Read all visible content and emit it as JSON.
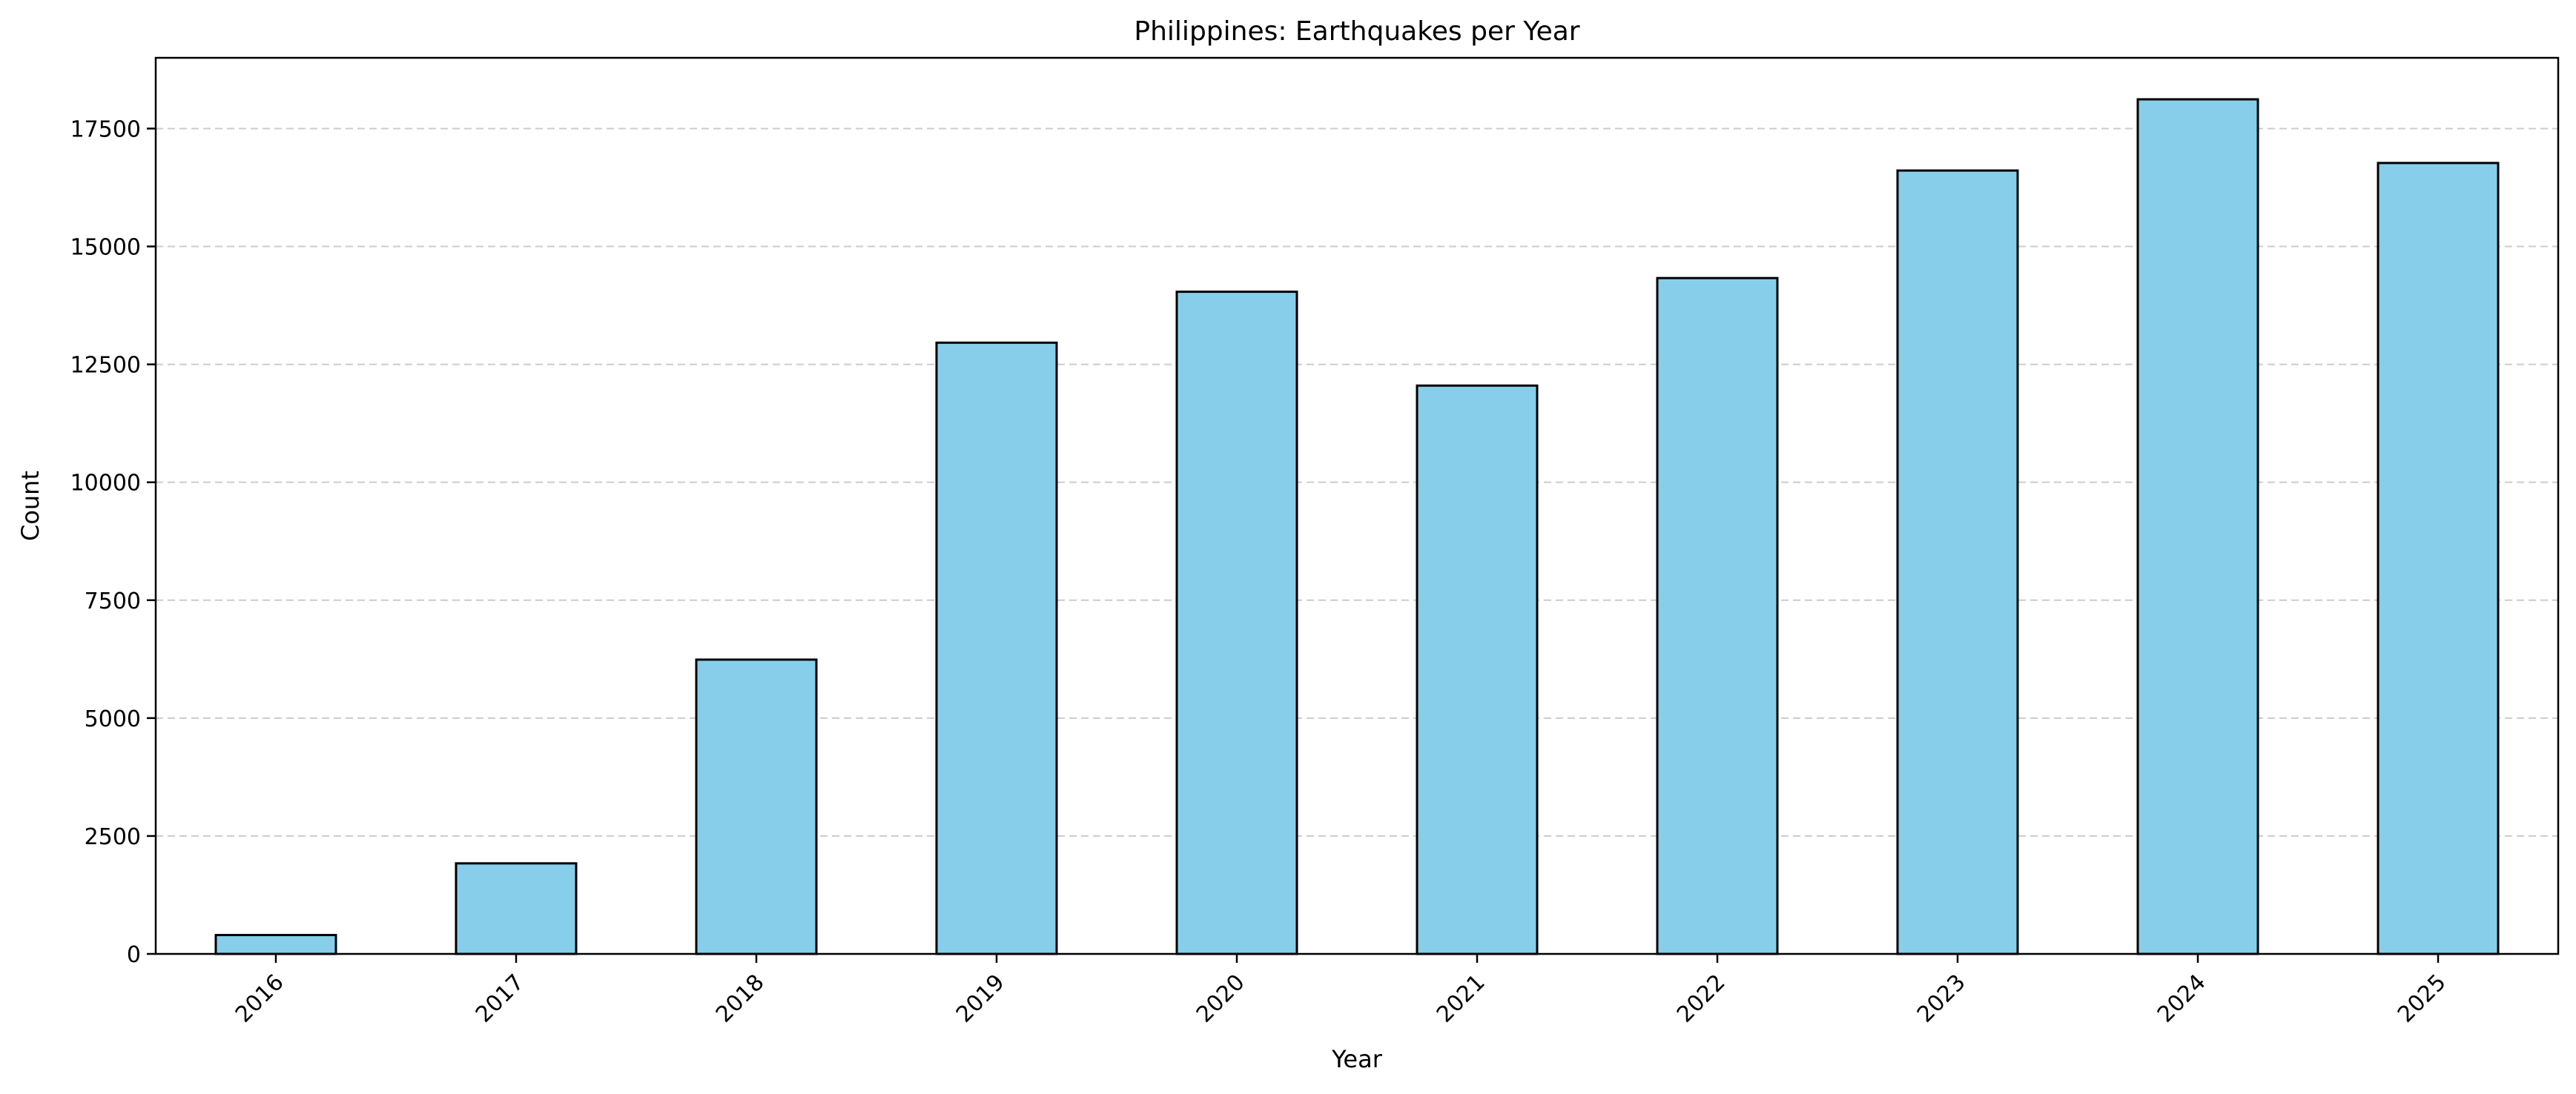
{
  "chart_data": {
    "type": "bar",
    "title": "Philippines: Earthquakes per Year",
    "xlabel": "Year",
    "ylabel": "Count",
    "categories": [
      "2016",
      "2017",
      "2018",
      "2019",
      "2020",
      "2021",
      "2022",
      "2023",
      "2024",
      "2025"
    ],
    "values": [
      400,
      1920,
      6240,
      12960,
      14040,
      12050,
      14330,
      16610,
      18120,
      16770
    ],
    "ylim": [
      0,
      19000
    ],
    "yticks": [
      0,
      2500,
      5000,
      7500,
      10000,
      12500,
      15000,
      17500
    ],
    "ytick_labels": [
      "0",
      "2500",
      "5000",
      "7500",
      "10000",
      "12500",
      "15000",
      "17500"
    ],
    "grid": "y-dashed",
    "legend": "none",
    "colors": {
      "bar_fill": "#87CEEB",
      "bar_edge": "#000000",
      "grid": "#cccccc"
    }
  }
}
